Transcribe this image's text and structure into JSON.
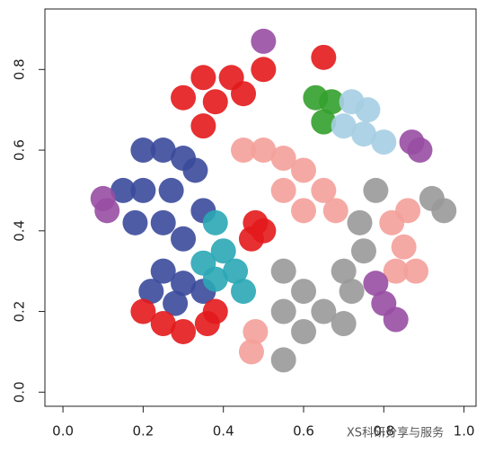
{
  "chart_data": {
    "type": "scatter",
    "xlim": [
      -0.045,
      1.03
    ],
    "ylim": [
      -0.035,
      0.95
    ],
    "xticks": [
      {
        "value": 0,
        "label": "0.0"
      },
      0.2,
      0.4,
      0.6,
      0.8,
      {
        "value": 1,
        "label": "1.0"
      }
    ],
    "yticks": [
      {
        "value": 0,
        "label": "0.0"
      },
      0.2,
      0.4,
      0.6,
      0.8
    ],
    "annotation": "XS科研分享与服务",
    "series": [
      {
        "color": "#3b4a9b",
        "x": [
          0.2,
          0.25,
          0.3,
          0.15,
          0.2,
          0.27,
          0.33,
          0.18,
          0.25,
          0.35,
          0.3,
          0.25,
          0.3,
          0.22,
          0.35,
          0.28
        ],
        "y": [
          0.6,
          0.6,
          0.58,
          0.5,
          0.5,
          0.5,
          0.55,
          0.42,
          0.42,
          0.45,
          0.38,
          0.3,
          0.27,
          0.25,
          0.25,
          0.22
        ]
      },
      {
        "color": "#2aa7b5",
        "x": [
          0.38,
          0.4,
          0.38,
          0.43,
          0.45,
          0.35
        ],
        "y": [
          0.42,
          0.35,
          0.28,
          0.3,
          0.25,
          0.32
        ]
      },
      {
        "color": "#e31a1c",
        "x": [
          0.35,
          0.42,
          0.5,
          0.3,
          0.38,
          0.45,
          0.35,
          0.48,
          0.5,
          0.47,
          0.2,
          0.25,
          0.3,
          0.36,
          0.38,
          0.65
        ],
        "y": [
          0.78,
          0.78,
          0.8,
          0.73,
          0.72,
          0.74,
          0.66,
          0.42,
          0.4,
          0.38,
          0.2,
          0.17,
          0.15,
          0.17,
          0.2,
          0.83
        ]
      },
      {
        "color": "#f4a09a",
        "x": [
          0.45,
          0.5,
          0.55,
          0.6,
          0.65,
          0.6,
          0.68,
          0.55,
          0.48,
          0.47,
          0.82,
          0.85,
          0.83,
          0.88,
          0.86
        ],
        "y": [
          0.6,
          0.6,
          0.58,
          0.55,
          0.5,
          0.45,
          0.45,
          0.5,
          0.15,
          0.1,
          0.42,
          0.36,
          0.3,
          0.3,
          0.45
        ]
      },
      {
        "color": "#999999",
        "x": [
          0.55,
          0.6,
          0.65,
          0.7,
          0.6,
          0.55,
          0.7,
          0.75,
          0.78,
          0.74,
          0.72,
          0.55,
          0.95,
          0.92
        ],
        "y": [
          0.3,
          0.25,
          0.2,
          0.17,
          0.15,
          0.2,
          0.3,
          0.35,
          0.5,
          0.42,
          0.25,
          0.08,
          0.45,
          0.48
        ]
      },
      {
        "color": "#33a02c",
        "x": [
          0.63,
          0.67,
          0.65
        ],
        "y": [
          0.73,
          0.72,
          0.67
        ]
      },
      {
        "color": "#a6cee3",
        "x": [
          0.72,
          0.76,
          0.75,
          0.8,
          0.7
        ],
        "y": [
          0.72,
          0.7,
          0.64,
          0.62,
          0.66
        ]
      },
      {
        "color": "#984ea3",
        "x": [
          0.87,
          0.89,
          0.78,
          0.8,
          0.83,
          0.1,
          0.11,
          0.5
        ],
        "y": [
          0.62,
          0.6,
          0.27,
          0.22,
          0.18,
          0.48,
          0.45,
          0.87
        ]
      }
    ]
  }
}
